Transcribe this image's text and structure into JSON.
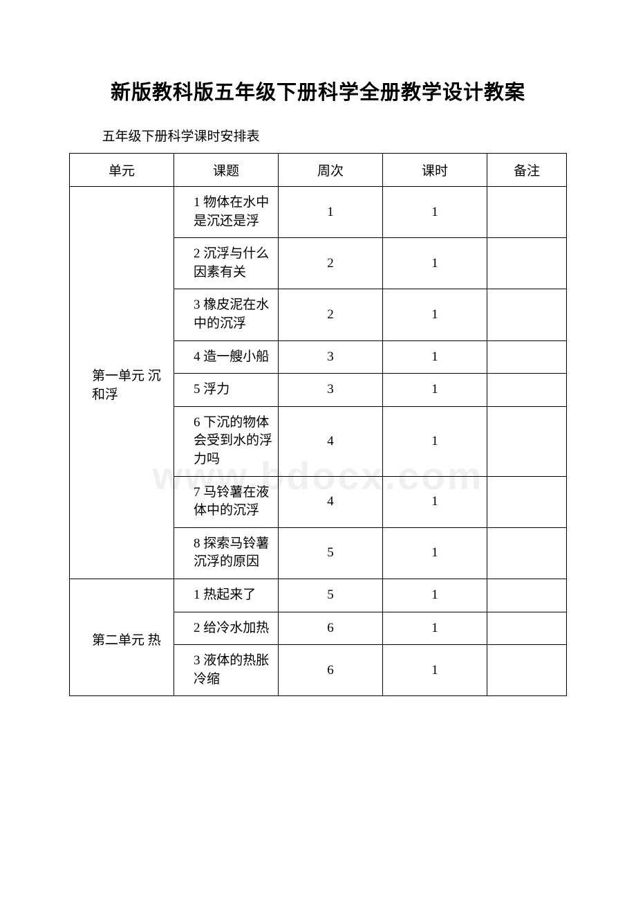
{
  "document": {
    "title": "新版教科版五年级下册科学全册教学设计教案",
    "subtitle": "五年级下册科学课时安排表",
    "watermark": "www.bdocx.com"
  },
  "table": {
    "headers": {
      "unit": "单元",
      "topic": "课题",
      "week": "周次",
      "hours": "课时",
      "note": "备注"
    },
    "units": [
      {
        "name": "第一单元 沉和浮",
        "rows": [
          {
            "topic": "1 物体在水中是沉还是浮",
            "week": "1",
            "hours": "1",
            "note": ""
          },
          {
            "topic": "2 沉浮与什么因素有关",
            "week": "2",
            "hours": "1",
            "note": ""
          },
          {
            "topic": "3 橡皮泥在水中的沉浮",
            "week": "2",
            "hours": "1",
            "note": ""
          },
          {
            "topic": "4 造一艘小船",
            "week": "3",
            "hours": "1",
            "note": ""
          },
          {
            "topic": "5 浮力",
            "week": "3",
            "hours": "1",
            "note": ""
          },
          {
            "topic": "6 下沉的物体会受到水的浮力吗",
            "week": "4",
            "hours": "1",
            "note": ""
          },
          {
            "topic": "7 马铃薯在液体中的沉浮",
            "week": "4",
            "hours": "1",
            "note": ""
          },
          {
            "topic": "8 探索马铃薯沉浮的原因",
            "week": "5",
            "hours": "1",
            "note": ""
          }
        ]
      },
      {
        "name": "第二单元 热",
        "rows": [
          {
            "topic": "1 热起来了",
            "week": "5",
            "hours": "1",
            "note": ""
          },
          {
            "topic": "2 给冷水加热",
            "week": "6",
            "hours": "1",
            "note": ""
          },
          {
            "topic": "3 液体的热胀冷缩",
            "week": "6",
            "hours": "1",
            "note": ""
          }
        ]
      }
    ]
  }
}
